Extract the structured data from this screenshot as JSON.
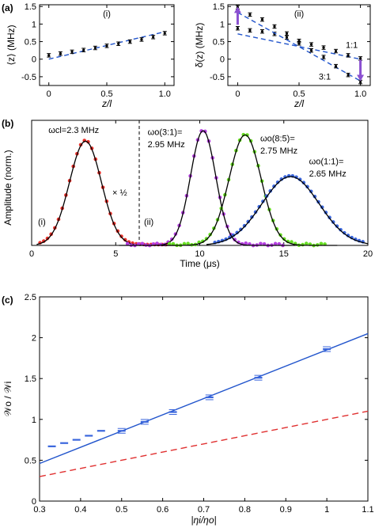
{
  "chart_data": [
    {
      "id": "a-i",
      "panel_label": "(a)",
      "sub_label": "(i)",
      "type": "scatter",
      "ylabel": "⟨z⟩ (MHz)",
      "xlabel": "z/l",
      "xlim": [
        -0.08,
        1.08
      ],
      "ylim": [
        -0.75,
        1.55
      ],
      "xticks": [
        "0",
        "0.5",
        "1.0"
      ],
      "xtick_values": [
        0,
        0.5,
        1.0
      ],
      "yticks": [
        "-0.5",
        "0",
        "0.5",
        "1",
        "1.5"
      ],
      "ytick_values": [
        -0.5,
        0,
        0.5,
        1,
        1.5
      ],
      "points": {
        "x": [
          0,
          0.1,
          0.2,
          0.3,
          0.4,
          0.5,
          0.6,
          0.7,
          0.8,
          0.9,
          1.0
        ],
        "y": [
          0.11,
          0.16,
          0.21,
          0.26,
          0.32,
          0.38,
          0.44,
          0.5,
          0.56,
          0.63,
          0.74
        ],
        "err": [
          0.05,
          0.05,
          0.05,
          0.05,
          0.05,
          0.05,
          0.05,
          0.05,
          0.05,
          0.05,
          0.05
        ]
      },
      "fit_line": {
        "x": [
          0,
          1.0
        ],
        "y": [
          0.0,
          0.78
        ]
      }
    },
    {
      "id": "a-ii",
      "sub_label": "(ii)",
      "type": "scatter",
      "ylabel": "δ(z) (MHz)",
      "xlabel": "z/l",
      "xlim": [
        -0.08,
        1.08
      ],
      "ylim": [
        -0.75,
        1.55
      ],
      "xticks": [
        "0",
        "0.5",
        "1.0"
      ],
      "xtick_values": [
        0,
        0.5,
        1.0
      ],
      "yticks": [
        "-0.5",
        "0",
        "0.5",
        "1",
        "1.5"
      ],
      "ytick_values": [
        -0.5,
        0,
        0.5,
        1,
        1.5
      ],
      "series": [
        {
          "name": "1:1",
          "x": [
            0,
            0.1,
            0.2,
            0.3,
            0.4,
            0.5,
            0.6,
            0.7,
            0.8,
            0.9,
            1.0
          ],
          "y": [
            0.88,
            0.82,
            0.79,
            0.72,
            0.62,
            0.52,
            0.42,
            0.33,
            0.23,
            0.11,
            0.02
          ],
          "err": [
            0.05,
            0.05,
            0.05,
            0.05,
            0.05,
            0.05,
            0.05,
            0.05,
            0.05,
            0.05,
            0.05
          ],
          "fit_line": {
            "x": [
              0,
              1.0
            ],
            "y": [
              0.72,
              0.0
            ]
          }
        },
        {
          "name": "3:1",
          "x": [
            0,
            0.1,
            0.2,
            0.3,
            0.4,
            0.5,
            0.6,
            0.7,
            0.8,
            0.9,
            1.0
          ],
          "y": [
            1.48,
            1.27,
            1.13,
            0.93,
            0.73,
            0.45,
            0.25,
            0.06,
            -0.2,
            -0.45,
            -0.65
          ],
          "err": [
            0.05,
            0.05,
            0.05,
            0.05,
            0.05,
            0.05,
            0.05,
            0.05,
            0.05,
            0.05,
            0.05
          ],
          "fit_line": {
            "x": [
              0,
              1.0
            ],
            "y": [
              1.33,
              -0.62
            ]
          }
        }
      ],
      "labels": [
        "1:1",
        "3:1"
      ],
      "arrow_color": "#8a4fd0"
    },
    {
      "id": "b",
      "panel_label": "(b)",
      "type": "scatter",
      "ylabel": "Amplitude (norm.)",
      "xlabel": "Time (μs)",
      "xlim": [
        0,
        20
      ],
      "ylim": [
        0,
        0.6
      ],
      "xticks": [
        "0",
        "5",
        "10",
        "15",
        "20"
      ],
      "xtick_values": [
        0,
        5,
        10,
        15,
        20
      ],
      "divider_x": 6.4,
      "region_labels": [
        "(i)",
        "(ii)"
      ],
      "series": [
        {
          "name": "ωcl=2.3 MHz",
          "color": "#e8302a",
          "center": 3.2,
          "width": 0.95,
          "amplitude": 0.5
        },
        {
          "name": "ωo(3:1)= 2.95 MHz",
          "color": "#b43ee0",
          "center": 10.2,
          "width": 0.75,
          "amplitude": 0.55
        },
        {
          "name": "ωo(8:5)= 2.75 MHz",
          "color": "#66dd22",
          "center": 12.7,
          "width": 0.95,
          "amplitude": 0.53
        },
        {
          "name": "ωo(1:1)= 2.65 MHz",
          "color": "#3a66dd",
          "center": 15.4,
          "width": 1.7,
          "amplitude": 0.33
        }
      ],
      "annotations": {
        "input_freq": "ωcl=2.3 MHz",
        "half": "× ½",
        "out31_a": "ωo(3:1)=",
        "out31_b": "2.95 MHz",
        "out85_a": "ωo(8:5)=",
        "out85_b": "2.75 MHz",
        "out11_a": "ωo(1:1)=",
        "out11_b": "2.65 MHz"
      }
    },
    {
      "id": "c",
      "panel_label": "(c)",
      "type": "scatter",
      "ylabel": "𝒲o / 𝒲i",
      "xlabel": "|ηi/ηo|",
      "xlim": [
        0.3,
        1.1
      ],
      "ylim": [
        0,
        2.5
      ],
      "xticks": [
        "0.3",
        "0.4",
        "0.5",
        "0.6",
        "0.7",
        "0.8",
        "0.9",
        "1",
        "1.1"
      ],
      "xtick_values": [
        0.3,
        0.4,
        0.5,
        0.6,
        0.7,
        0.8,
        0.9,
        1.0,
        1.1
      ],
      "yticks": [
        "0",
        "0.5",
        "1",
        "1.5",
        "2",
        "2.5"
      ],
      "ytick_values": [
        0,
        0.5,
        1,
        1.5,
        2,
        2.5
      ],
      "points": {
        "x": [
          0.33,
          0.36,
          0.39,
          0.42,
          0.45,
          0.5,
          0.556,
          0.625,
          0.714,
          0.833,
          1.0
        ],
        "y": [
          0.67,
          0.71,
          0.75,
          0.8,
          0.86,
          0.86,
          0.97,
          1.09,
          1.27,
          1.51,
          1.86
        ],
        "color": "#3a66dd"
      },
      "series": [
        {
          "name": "fit",
          "x": [
            0.3,
            1.1
          ],
          "y": [
            0.46,
            2.05
          ],
          "color": "#2255cc",
          "style": "solid"
        },
        {
          "name": "ref",
          "x": [
            0.3,
            1.1
          ],
          "y": [
            0.3,
            1.1
          ],
          "color": "#e03030",
          "style": "dashed"
        }
      ]
    }
  ]
}
